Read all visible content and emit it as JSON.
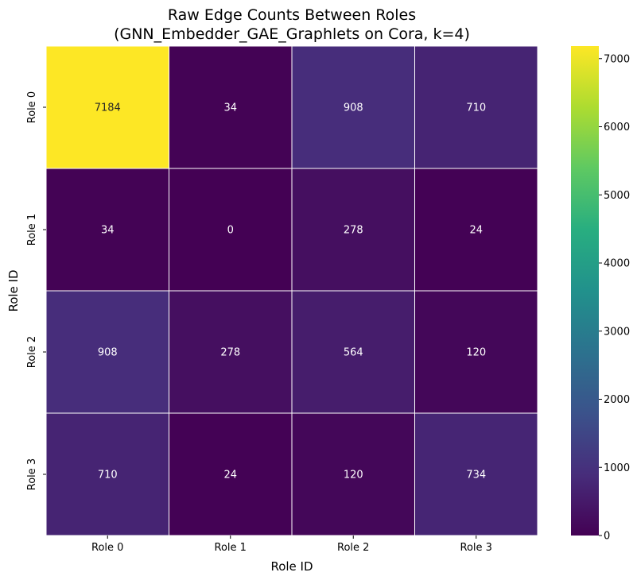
{
  "chart_data": {
    "type": "heatmap",
    "title_lines": [
      "Raw Edge Counts Between Roles",
      "(GNN_Embedder_GAE_Graphlets on Cora, k=4)"
    ],
    "xlabel": "Role ID",
    "ylabel": "Role ID",
    "x_categories": [
      "Role 0",
      "Role 1",
      "Role 2",
      "Role 3"
    ],
    "y_categories": [
      "Role 0",
      "Role 1",
      "Role 2",
      "Role 3"
    ],
    "values": [
      [
        7184,
        34,
        908,
        710
      ],
      [
        34,
        0,
        278,
        24
      ],
      [
        908,
        278,
        564,
        120
      ],
      [
        710,
        24,
        120,
        734
      ]
    ],
    "colormap": "viridis",
    "value_range": [
      0,
      7184
    ],
    "colorbar_ticks": [
      0,
      1000,
      2000,
      3000,
      4000,
      5000,
      6000,
      7000
    ],
    "annotation_light_color": "#ffffff",
    "annotation_dark_color": "#262626",
    "cell_border_color": "#ffffff"
  }
}
